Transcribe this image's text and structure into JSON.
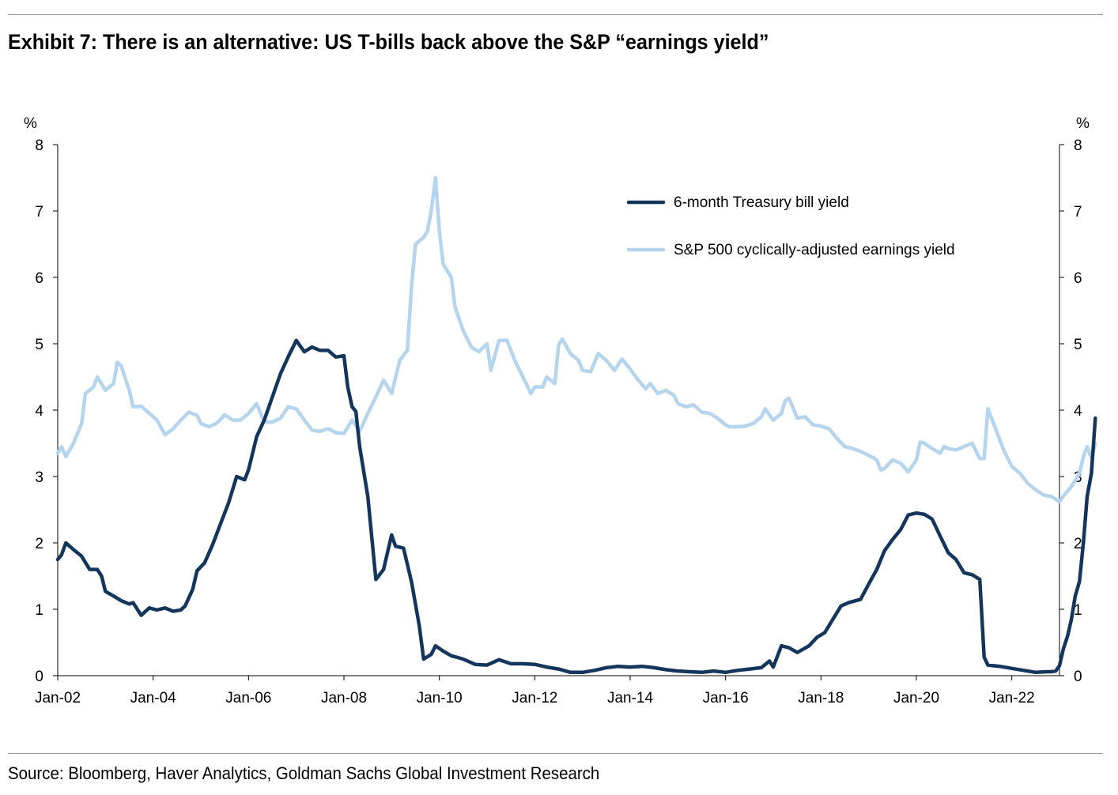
{
  "title": "Exhibit 7: There is an alternative: US T-bills back above the S&P “earnings yield”",
  "source": "Source: Bloomberg, Haver Analytics, Goldman Sachs Global Investment Research",
  "chart_data": {
    "type": "line",
    "left_axis_unit": "%",
    "right_axis_unit": "%",
    "ylim": [
      0,
      8
    ],
    "y_ticks": [
      0,
      1,
      2,
      3,
      4,
      5,
      6,
      7,
      8
    ],
    "x_ticks": [
      "Jan-02",
      "Jan-04",
      "Jan-06",
      "Jan-08",
      "Jan-10",
      "Jan-12",
      "Jan-14",
      "Jan-16",
      "Jan-18",
      "Jan-20",
      "Jan-22"
    ],
    "x_tick_years": [
      2002,
      2004,
      2006,
      2008,
      2010,
      2012,
      2014,
      2016,
      2018,
      2020,
      2022
    ],
    "xlim": [
      2002.0,
      2023.0
    ],
    "grid": false,
    "legend_position": "top-right",
    "series": [
      {
        "name": "6-month Treasury bill yield",
        "color": "#14365d",
        "points": [
          [
            2002.0,
            1.75
          ],
          [
            2002.08,
            1.82
          ],
          [
            2002.17,
            2.0
          ],
          [
            2002.33,
            1.9
          ],
          [
            2002.5,
            1.8
          ],
          [
            2002.67,
            1.6
          ],
          [
            2002.83,
            1.6
          ],
          [
            2002.92,
            1.5
          ],
          [
            2003.0,
            1.27
          ],
          [
            2003.17,
            1.2
          ],
          [
            2003.33,
            1.13
          ],
          [
            2003.5,
            1.08
          ],
          [
            2003.58,
            1.1
          ],
          [
            2003.75,
            0.91
          ],
          [
            2003.92,
            1.02
          ],
          [
            2004.08,
            0.99
          ],
          [
            2004.25,
            1.02
          ],
          [
            2004.42,
            0.97
          ],
          [
            2004.58,
            0.99
          ],
          [
            2004.67,
            1.05
          ],
          [
            2004.83,
            1.3
          ],
          [
            2004.92,
            1.58
          ],
          [
            2005.08,
            1.7
          ],
          [
            2005.25,
            1.98
          ],
          [
            2005.42,
            2.3
          ],
          [
            2005.58,
            2.6
          ],
          [
            2005.75,
            3.0
          ],
          [
            2005.92,
            2.95
          ],
          [
            2006.0,
            3.1
          ],
          [
            2006.17,
            3.6
          ],
          [
            2006.33,
            3.85
          ],
          [
            2006.5,
            4.2
          ],
          [
            2006.67,
            4.55
          ],
          [
            2006.83,
            4.8
          ],
          [
            2007.0,
            5.05
          ],
          [
            2007.17,
            4.88
          ],
          [
            2007.33,
            4.95
          ],
          [
            2007.5,
            4.9
          ],
          [
            2007.67,
            4.9
          ],
          [
            2007.83,
            4.8
          ],
          [
            2008.0,
            4.82
          ],
          [
            2008.08,
            4.35
          ],
          [
            2008.17,
            4.05
          ],
          [
            2008.25,
            3.98
          ],
          [
            2008.33,
            3.45
          ],
          [
            2008.5,
            2.7
          ],
          [
            2008.67,
            1.45
          ],
          [
            2008.83,
            1.6
          ],
          [
            2009.0,
            2.12
          ],
          [
            2009.08,
            1.95
          ],
          [
            2009.25,
            1.92
          ],
          [
            2009.42,
            1.4
          ],
          [
            2009.58,
            0.75
          ],
          [
            2009.67,
            0.25
          ],
          [
            2009.83,
            0.32
          ],
          [
            2009.92,
            0.45
          ],
          [
            2010.08,
            0.37
          ],
          [
            2010.25,
            0.3
          ],
          [
            2010.5,
            0.25
          ],
          [
            2010.75,
            0.17
          ],
          [
            2011.0,
            0.16
          ],
          [
            2011.25,
            0.24
          ],
          [
            2011.5,
            0.18
          ],
          [
            2011.75,
            0.18
          ],
          [
            2012.0,
            0.17
          ],
          [
            2012.25,
            0.13
          ],
          [
            2012.5,
            0.1
          ],
          [
            2012.75,
            0.05
          ],
          [
            2013.0,
            0.05
          ],
          [
            2013.25,
            0.08
          ],
          [
            2013.5,
            0.12
          ],
          [
            2013.75,
            0.14
          ],
          [
            2014.0,
            0.13
          ],
          [
            2014.25,
            0.14
          ],
          [
            2014.5,
            0.12
          ],
          [
            2014.75,
            0.09
          ],
          [
            2015.0,
            0.07
          ],
          [
            2015.25,
            0.06
          ],
          [
            2015.5,
            0.05
          ],
          [
            2015.75,
            0.07
          ],
          [
            2016.0,
            0.05
          ],
          [
            2016.25,
            0.08
          ],
          [
            2016.5,
            0.1
          ],
          [
            2016.75,
            0.12
          ],
          [
            2016.92,
            0.22
          ],
          [
            2017.0,
            0.13
          ],
          [
            2017.08,
            0.28
          ],
          [
            2017.17,
            0.45
          ],
          [
            2017.33,
            0.42
          ],
          [
            2017.5,
            0.35
          ],
          [
            2017.58,
            0.38
          ],
          [
            2017.75,
            0.45
          ],
          [
            2017.92,
            0.58
          ],
          [
            2018.08,
            0.65
          ],
          [
            2018.25,
            0.85
          ],
          [
            2018.42,
            1.05
          ],
          [
            2018.58,
            1.1
          ],
          [
            2018.83,
            1.15
          ],
          [
            2019.0,
            1.38
          ],
          [
            2019.17,
            1.6
          ],
          [
            2019.33,
            1.88
          ],
          [
            2019.5,
            2.05
          ],
          [
            2019.67,
            2.2
          ],
          [
            2019.83,
            2.42
          ],
          [
            2020.0,
            2.45
          ],
          [
            2020.17,
            2.43
          ],
          [
            2020.33,
            2.36
          ],
          [
            2020.5,
            2.1
          ],
          [
            2020.67,
            1.85
          ],
          [
            2020.83,
            1.75
          ],
          [
            2021.0,
            1.55
          ],
          [
            2021.17,
            1.52
          ],
          [
            2021.33,
            1.45
          ],
          [
            2021.42,
            0.28
          ],
          [
            2021.5,
            0.16
          ],
          [
            2021.75,
            0.14
          ],
          [
            2022.0,
            0.11
          ],
          [
            2022.25,
            0.08
          ],
          [
            2022.5,
            0.05
          ],
          [
            2022.75,
            0.06
          ],
          [
            2022.83,
            0.06
          ],
          [
            2022.92,
            0.07
          ],
          [
            2023.0,
            0.15
          ],
          [
            2023.08,
            0.4
          ],
          [
            2023.17,
            0.6
          ],
          [
            2023.25,
            0.85
          ],
          [
            2023.33,
            1.2
          ],
          [
            2023.42,
            1.42
          ],
          [
            2023.5,
            2.0
          ],
          [
            2023.58,
            2.7
          ],
          [
            2023.67,
            3.05
          ],
          [
            2023.75,
            3.88
          ]
        ]
      },
      {
        "name": "S&P 500 cyclically-adjusted earnings yield",
        "color": "#b5d4ed",
        "points": [
          [
            2002.0,
            3.35
          ],
          [
            2002.08,
            3.45
          ],
          [
            2002.17,
            3.3
          ],
          [
            2002.33,
            3.5
          ],
          [
            2002.5,
            3.8
          ],
          [
            2002.58,
            4.25
          ],
          [
            2002.75,
            4.35
          ],
          [
            2002.83,
            4.5
          ],
          [
            2003.0,
            4.3
          ],
          [
            2003.17,
            4.4
          ],
          [
            2003.25,
            4.72
          ],
          [
            2003.33,
            4.67
          ],
          [
            2003.5,
            4.3
          ],
          [
            2003.58,
            4.05
          ],
          [
            2003.75,
            4.06
          ],
          [
            2003.92,
            3.95
          ],
          [
            2004.08,
            3.85
          ],
          [
            2004.25,
            3.63
          ],
          [
            2004.42,
            3.72
          ],
          [
            2004.58,
            3.85
          ],
          [
            2004.75,
            3.97
          ],
          [
            2004.92,
            3.92
          ],
          [
            2005.0,
            3.8
          ],
          [
            2005.17,
            3.75
          ],
          [
            2005.33,
            3.8
          ],
          [
            2005.5,
            3.93
          ],
          [
            2005.67,
            3.85
          ],
          [
            2005.83,
            3.85
          ],
          [
            2006.0,
            3.95
          ],
          [
            2006.17,
            4.1
          ],
          [
            2006.33,
            3.82
          ],
          [
            2006.5,
            3.82
          ],
          [
            2006.67,
            3.88
          ],
          [
            2006.83,
            4.05
          ],
          [
            2007.0,
            4.02
          ],
          [
            2007.17,
            3.85
          ],
          [
            2007.33,
            3.7
          ],
          [
            2007.5,
            3.68
          ],
          [
            2007.67,
            3.72
          ],
          [
            2007.83,
            3.66
          ],
          [
            2008.0,
            3.65
          ],
          [
            2008.17,
            3.85
          ],
          [
            2008.33,
            3.68
          ],
          [
            2008.5,
            3.95
          ],
          [
            2008.67,
            4.2
          ],
          [
            2008.83,
            4.45
          ],
          [
            2009.0,
            4.25
          ],
          [
            2009.17,
            4.75
          ],
          [
            2009.33,
            4.9
          ],
          [
            2009.42,
            5.9
          ],
          [
            2009.5,
            6.5
          ],
          [
            2009.58,
            6.55
          ],
          [
            2009.67,
            6.6
          ],
          [
            2009.75,
            6.7
          ],
          [
            2009.83,
            7.0
          ],
          [
            2009.92,
            7.5
          ],
          [
            2010.0,
            6.7
          ],
          [
            2010.08,
            6.2
          ],
          [
            2010.25,
            6.0
          ],
          [
            2010.33,
            5.55
          ],
          [
            2010.5,
            5.2
          ],
          [
            2010.67,
            4.95
          ],
          [
            2010.83,
            4.88
          ],
          [
            2011.0,
            5.0
          ],
          [
            2011.08,
            4.6
          ],
          [
            2011.25,
            5.05
          ],
          [
            2011.42,
            5.05
          ],
          [
            2011.58,
            4.75
          ],
          [
            2011.75,
            4.5
          ],
          [
            2011.92,
            4.25
          ],
          [
            2012.0,
            4.35
          ],
          [
            2012.17,
            4.35
          ],
          [
            2012.25,
            4.5
          ],
          [
            2012.42,
            4.4
          ],
          [
            2012.5,
            4.98
          ],
          [
            2012.58,
            5.07
          ],
          [
            2012.75,
            4.85
          ],
          [
            2012.92,
            4.75
          ],
          [
            2013.0,
            4.6
          ],
          [
            2013.17,
            4.58
          ],
          [
            2013.33,
            4.85
          ],
          [
            2013.5,
            4.75
          ],
          [
            2013.67,
            4.6
          ],
          [
            2013.83,
            4.77
          ],
          [
            2014.0,
            4.62
          ],
          [
            2014.17,
            4.45
          ],
          [
            2014.33,
            4.32
          ],
          [
            2014.42,
            4.4
          ],
          [
            2014.58,
            4.25
          ],
          [
            2014.75,
            4.3
          ],
          [
            2014.92,
            4.22
          ],
          [
            2015.0,
            4.1
          ],
          [
            2015.17,
            4.05
          ],
          [
            2015.33,
            4.08
          ],
          [
            2015.5,
            3.97
          ],
          [
            2015.67,
            3.95
          ],
          [
            2015.83,
            3.88
          ],
          [
            2016.0,
            3.78
          ],
          [
            2016.08,
            3.75
          ],
          [
            2016.25,
            3.75
          ],
          [
            2016.42,
            3.76
          ],
          [
            2016.58,
            3.8
          ],
          [
            2016.75,
            3.9
          ],
          [
            2016.83,
            4.02
          ],
          [
            2017.0,
            3.85
          ],
          [
            2017.17,
            3.95
          ],
          [
            2017.25,
            4.14
          ],
          [
            2017.33,
            4.18
          ],
          [
            2017.5,
            3.88
          ],
          [
            2017.67,
            3.9
          ],
          [
            2017.83,
            3.78
          ],
          [
            2018.0,
            3.76
          ],
          [
            2018.17,
            3.72
          ],
          [
            2018.33,
            3.58
          ],
          [
            2018.5,
            3.45
          ],
          [
            2018.67,
            3.42
          ],
          [
            2018.83,
            3.38
          ],
          [
            2019.0,
            3.32
          ],
          [
            2019.17,
            3.25
          ],
          [
            2019.25,
            3.1
          ],
          [
            2019.33,
            3.12
          ],
          [
            2019.5,
            3.25
          ],
          [
            2019.67,
            3.2
          ],
          [
            2019.83,
            3.07
          ],
          [
            2020.0,
            3.25
          ],
          [
            2020.08,
            3.52
          ],
          [
            2020.17,
            3.5
          ],
          [
            2020.33,
            3.42
          ],
          [
            2020.5,
            3.35
          ],
          [
            2020.58,
            3.45
          ],
          [
            2020.67,
            3.42
          ],
          [
            2020.83,
            3.4
          ],
          [
            2021.0,
            3.45
          ],
          [
            2021.17,
            3.5
          ],
          [
            2021.33,
            3.27
          ],
          [
            2021.42,
            3.27
          ],
          [
            2021.5,
            4.02
          ],
          [
            2021.67,
            3.7
          ],
          [
            2021.83,
            3.4
          ],
          [
            2022.0,
            3.15
          ],
          [
            2022.17,
            3.05
          ],
          [
            2022.33,
            2.9
          ],
          [
            2022.5,
            2.8
          ],
          [
            2022.67,
            2.72
          ],
          [
            2022.83,
            2.7
          ],
          [
            2023.0,
            2.62
          ],
          [
            2023.08,
            2.7
          ],
          [
            2023.25,
            2.85
          ],
          [
            2023.42,
            3.05
          ],
          [
            2023.5,
            3.3
          ],
          [
            2023.58,
            3.45
          ],
          [
            2023.67,
            3.28
          ],
          [
            2023.75,
            3.5
          ]
        ]
      }
    ]
  }
}
